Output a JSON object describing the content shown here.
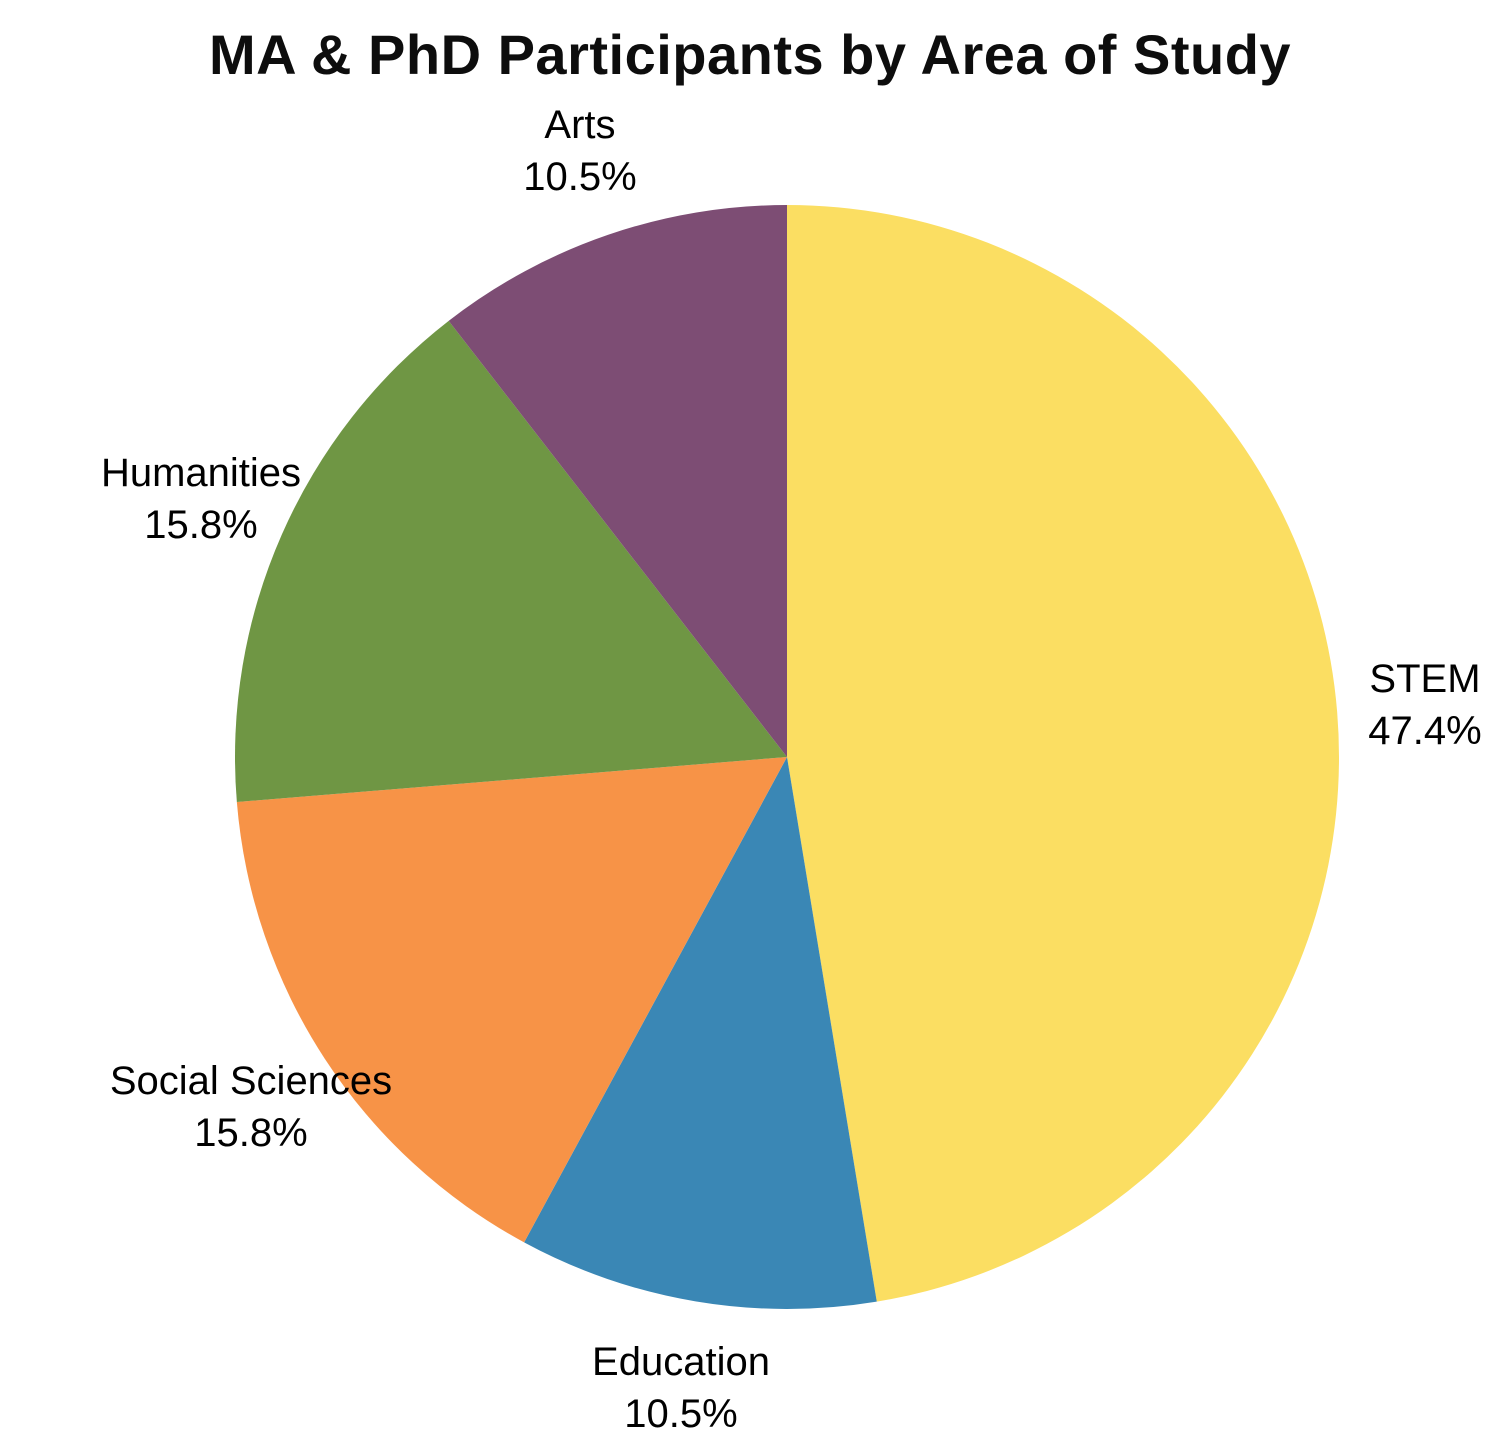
{
  "title": "MA & PhD Participants by Area of Study",
  "chart_data": {
    "type": "pie",
    "title": "MA & PhD Participants by Area of Study",
    "labels": [
      "STEM",
      "Education",
      "Social Sciences",
      "Humanities",
      "Arts"
    ],
    "values": [
      47.4,
      10.5,
      15.8,
      15.8,
      10.5
    ],
    "value_labels": [
      "47.4%",
      "10.5%",
      "15.8%",
      "15.8%",
      "10.5%"
    ],
    "colors": [
      "#FBDE62",
      "#3A87B5",
      "#F79347",
      "#6F9644",
      "#7D4D74"
    ],
    "start_angle": "12 o'clock",
    "direction": "clockwise",
    "legend_position": "none",
    "label_placement": "outside slices, category name above percentage",
    "background": "#FFFFFF",
    "text_color": "#000000"
  }
}
